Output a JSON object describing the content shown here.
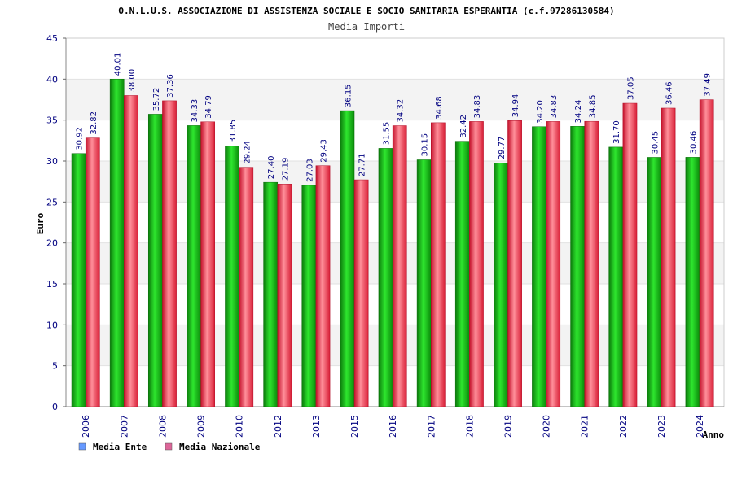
{
  "chart_data": {
    "type": "bar",
    "title": "O.N.L.U.S. ASSOCIAZIONE DI ASSISTENZA SOCIALE E SOCIO SANITARIA ESPERANTIA (c.f.97286130584)",
    "subtitle": "Media Importi",
    "xlabel": "Anno",
    "ylabel": "Euro",
    "ylim": [
      0,
      45
    ],
    "yticks": [
      "0",
      "5",
      "10",
      "15",
      "20",
      "25",
      "30",
      "35",
      "40",
      "45"
    ],
    "categories": [
      "2006",
      "2007",
      "2008",
      "2009",
      "2010",
      "2012",
      "2013",
      "2015",
      "2016",
      "2017",
      "2018",
      "2019",
      "2020",
      "2021",
      "2022",
      "2023",
      "2024"
    ],
    "series": [
      {
        "name": "Media Ente",
        "values": [
          30.92,
          40.01,
          35.72,
          34.33,
          31.85,
          27.4,
          27.03,
          36.15,
          31.55,
          30.15,
          32.42,
          29.77,
          34.2,
          34.24,
          31.7,
          30.45,
          30.46
        ],
        "labels": [
          "30.92",
          "40.01",
          "35.72",
          "34.33",
          "31.85",
          "27.40",
          "27.03",
          "36.15",
          "31.55",
          "30.15",
          "32.42",
          "29.77",
          "34.20",
          "34.24",
          "31.70",
          "30.45",
          "30.46"
        ]
      },
      {
        "name": "Media Nazionale",
        "values": [
          32.82,
          38.0,
          37.36,
          34.79,
          29.24,
          27.19,
          29.43,
          27.71,
          34.32,
          34.68,
          34.83,
          34.94,
          34.83,
          34.85,
          37.05,
          36.46,
          37.49
        ],
        "labels": [
          "32.82",
          "38.00",
          "37.36",
          "34.79",
          "29.24",
          "27.19",
          "29.43",
          "27.71",
          "34.32",
          "34.68",
          "34.83",
          "34.94",
          "34.83",
          "34.85",
          "37.05",
          "36.46",
          "37.49"
        ]
      }
    ],
    "legend": {
      "position": "bottom-left",
      "swatch_colors": [
        "#6699ff",
        "#dd6699"
      ]
    },
    "colors": {
      "ente": "#11aa11",
      "nazionale": "#ee3344",
      "band": "#f3f3f3",
      "text": "#000080"
    },
    "grid": true
  }
}
